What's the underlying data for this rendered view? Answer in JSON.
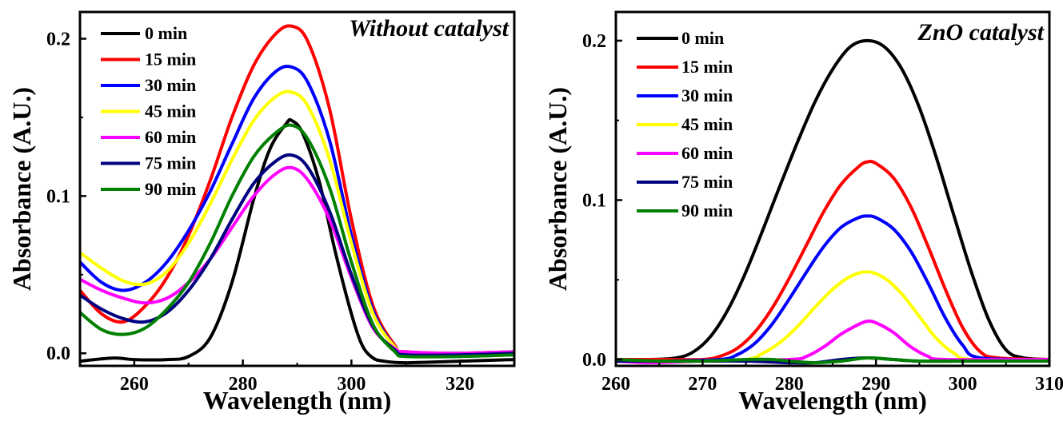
{
  "chart_data": [
    {
      "type": "line",
      "title": "Without catalyst",
      "xlabel": "Wavelength (nm)",
      "ylabel": "Absorbance (A.U.)",
      "xlim": [
        250,
        330
      ],
      "ylim": [
        -0.008,
        0.217
      ],
      "xticks": [
        260,
        280,
        300,
        320
      ],
      "xtick_labels": [
        "260",
        "280",
        "300",
        "320"
      ],
      "yticks": [
        0.0,
        0.1,
        0.2
      ],
      "ytick_labels": [
        "0.0",
        "0.1",
        "0.2"
      ],
      "legend_position": "top-left",
      "grid": false,
      "series": [
        {
          "name": "0 min",
          "color": "#000000",
          "x": [
            250,
            256,
            260,
            266,
            270,
            274,
            278,
            282,
            285,
            288,
            289,
            291,
            294,
            297,
            300,
            302,
            304,
            306,
            310,
            320,
            330
          ],
          "y": [
            -0.005,
            -0.003,
            -0.004,
            -0.004,
            -0.002,
            0.01,
            0.045,
            0.098,
            0.13,
            0.146,
            0.148,
            0.14,
            0.11,
            0.065,
            0.025,
            0.005,
            -0.003,
            -0.005,
            -0.006,
            -0.005,
            -0.004
          ]
        },
        {
          "name": "15 min",
          "color": "#ff0000",
          "x": [
            250,
            254,
            258,
            262,
            266,
            270,
            274,
            278,
            282,
            286,
            289,
            292,
            296,
            300,
            304,
            308,
            310,
            320,
            330
          ],
          "y": [
            0.04,
            0.025,
            0.02,
            0.03,
            0.048,
            0.075,
            0.11,
            0.15,
            0.183,
            0.203,
            0.208,
            0.198,
            0.155,
            0.085,
            0.03,
            0.005,
            0.0,
            0.0,
            0.001
          ]
        },
        {
          "name": "30 min",
          "color": "#0000ff",
          "x": [
            250,
            254,
            258,
            262,
            266,
            270,
            274,
            278,
            282,
            286,
            289,
            292,
            296,
            300,
            304,
            308,
            310,
            320,
            330
          ],
          "y": [
            0.058,
            0.045,
            0.04,
            0.045,
            0.058,
            0.078,
            0.103,
            0.133,
            0.162,
            0.179,
            0.182,
            0.172,
            0.135,
            0.075,
            0.027,
            0.004,
            0.001,
            0.0,
            0.001
          ]
        },
        {
          "name": "45 min",
          "color": "#ffff00",
          "x": [
            250,
            254,
            258,
            262,
            266,
            270,
            274,
            278,
            282,
            286,
            289,
            292,
            296,
            300,
            304,
            308,
            310,
            320,
            330
          ],
          "y": [
            0.064,
            0.054,
            0.046,
            0.044,
            0.052,
            0.07,
            0.095,
            0.123,
            0.148,
            0.163,
            0.166,
            0.157,
            0.123,
            0.07,
            0.025,
            0.004,
            0.001,
            0.0,
            0.001
          ]
        },
        {
          "name": "60 min",
          "color": "#ff00ff",
          "x": [
            250,
            254,
            258,
            262,
            266,
            270,
            274,
            278,
            282,
            286,
            289,
            292,
            296,
            300,
            304,
            308,
            310,
            320,
            330
          ],
          "y": [
            0.047,
            0.04,
            0.035,
            0.032,
            0.035,
            0.045,
            0.06,
            0.08,
            0.1,
            0.114,
            0.118,
            0.11,
            0.085,
            0.048,
            0.016,
            0.003,
            0.001,
            0.0,
            0.001
          ]
        },
        {
          "name": "75 min",
          "color": "#000080",
          "x": [
            250,
            254,
            258,
            262,
            266,
            270,
            274,
            278,
            282,
            286,
            289,
            292,
            296,
            300,
            304,
            308,
            310,
            320,
            330
          ],
          "y": [
            0.037,
            0.028,
            0.022,
            0.02,
            0.026,
            0.04,
            0.06,
            0.085,
            0.108,
            0.122,
            0.126,
            0.118,
            0.09,
            0.05,
            0.017,
            0.002,
            -0.001,
            -0.001,
            0.0
          ]
        },
        {
          "name": "90 min",
          "color": "#008000",
          "x": [
            250,
            254,
            258,
            262,
            266,
            270,
            274,
            278,
            282,
            286,
            289,
            292,
            296,
            300,
            304,
            308,
            310,
            320,
            330
          ],
          "y": [
            0.026,
            0.015,
            0.012,
            0.016,
            0.028,
            0.045,
            0.07,
            0.1,
            0.125,
            0.14,
            0.145,
            0.136,
            0.105,
            0.058,
            0.018,
            0.001,
            -0.002,
            -0.002,
            -0.001
          ]
        }
      ]
    },
    {
      "type": "line",
      "title": "ZnO catalyst",
      "xlabel": "Wavelength (nm)",
      "ylabel": "Absorbance (A.U.)",
      "xlim": [
        260,
        310
      ],
      "ylim": [
        -0.004,
        0.218
      ],
      "xticks": [
        260,
        270,
        280,
        290,
        300,
        310
      ],
      "xtick_labels": [
        "260",
        "270",
        "280",
        "290",
        "300",
        "310"
      ],
      "yticks": [
        0.0,
        0.1,
        0.2
      ],
      "ytick_labels": [
        "0.0",
        "0.1",
        "0.2"
      ],
      "legend_position": "top-left",
      "grid": false,
      "series": [
        {
          "name": "0 min",
          "color": "#000000",
          "x": [
            260,
            264,
            267,
            269,
            271,
            273,
            275,
            277,
            279,
            281,
            283,
            285,
            287,
            289,
            291,
            293,
            295,
            297,
            299,
            301,
            303,
            305,
            307,
            310
          ],
          "y": [
            0.0,
            0.0,
            0.001,
            0.005,
            0.015,
            0.032,
            0.055,
            0.082,
            0.11,
            0.137,
            0.162,
            0.182,
            0.196,
            0.2,
            0.196,
            0.182,
            0.158,
            0.126,
            0.09,
            0.055,
            0.025,
            0.006,
            0.001,
            0.0
          ]
        },
        {
          "name": "15 min",
          "color": "#ff0000",
          "x": [
            260,
            266,
            270,
            272,
            274,
            276,
            278,
            280,
            282,
            284,
            286,
            288,
            289,
            290,
            292,
            294,
            296,
            298,
            300,
            302,
            304,
            310
          ],
          "y": [
            0.0,
            0.0,
            0.0,
            0.002,
            0.007,
            0.017,
            0.032,
            0.051,
            0.072,
            0.093,
            0.11,
            0.121,
            0.124,
            0.123,
            0.114,
            0.096,
            0.071,
            0.044,
            0.02,
            0.005,
            0.001,
            0.0
          ]
        },
        {
          "name": "30 min",
          "color": "#0000ff",
          "x": [
            260,
            266,
            272,
            274,
            276,
            278,
            280,
            282,
            284,
            286,
            288,
            289,
            290,
            292,
            294,
            296,
            298,
            300,
            302,
            310
          ],
          "y": [
            -0.001,
            -0.001,
            0.0,
            0.003,
            0.01,
            0.022,
            0.038,
            0.055,
            0.071,
            0.083,
            0.089,
            0.09,
            0.089,
            0.082,
            0.068,
            0.048,
            0.026,
            0.009,
            0.001,
            0.0
          ]
        },
        {
          "name": "45 min",
          "color": "#ffff00",
          "x": [
            260,
            270,
            275,
            277,
            279,
            281,
            283,
            285,
            287,
            289,
            291,
            293,
            295,
            297,
            299,
            301,
            310
          ],
          "y": [
            -0.001,
            -0.001,
            0.0,
            0.004,
            0.011,
            0.021,
            0.033,
            0.044,
            0.052,
            0.055,
            0.051,
            0.041,
            0.027,
            0.013,
            0.004,
            0.0,
            0.0
          ]
        },
        {
          "name": "60 min",
          "color": "#ff00ff",
          "x": [
            260,
            264,
            270,
            280,
            282,
            284,
            286,
            288,
            289,
            290,
            292,
            294,
            296,
            298,
            310
          ],
          "y": [
            -0.001,
            -0.002,
            -0.001,
            0.0,
            0.002,
            0.008,
            0.016,
            0.022,
            0.024,
            0.023,
            0.017,
            0.008,
            0.002,
            0.0,
            0.0
          ]
        },
        {
          "name": "75 min",
          "color": "#000080",
          "x": [
            260,
            265,
            270,
            275,
            280,
            283,
            286,
            289,
            292,
            295,
            300,
            305,
            310
          ],
          "y": [
            -0.001,
            -0.001,
            -0.001,
            -0.001,
            -0.002,
            -0.002,
            0.0,
            0.001,
            0.0,
            -0.001,
            -0.001,
            -0.001,
            -0.001
          ]
        },
        {
          "name": "90 min",
          "color": "#008000",
          "x": [
            260,
            265,
            270,
            275,
            278,
            280,
            283,
            286,
            289,
            292,
            295,
            300,
            305,
            310
          ],
          "y": [
            0.0,
            -0.001,
            -0.001,
            0.0,
            0.0,
            -0.001,
            -0.002,
            -0.001,
            0.001,
            0.0,
            -0.001,
            -0.001,
            -0.001,
            -0.001
          ]
        }
      ]
    }
  ]
}
